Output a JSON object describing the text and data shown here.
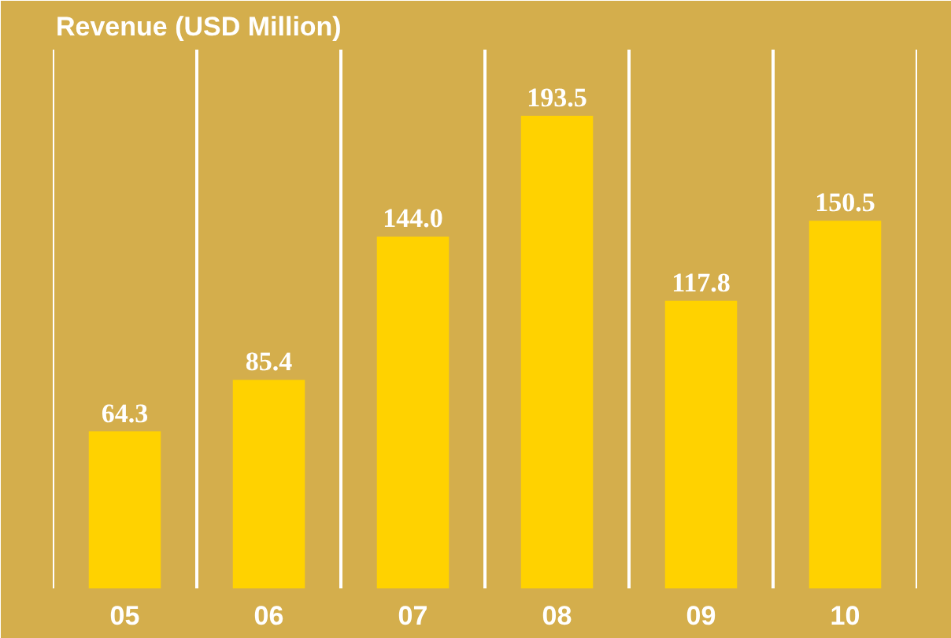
{
  "chart_data": {
    "type": "bar",
    "title": "Revenue (USD Million)",
    "categories": [
      "05",
      "06",
      "07",
      "08",
      "09",
      "10"
    ],
    "values": [
      64.3,
      85.4,
      144.0,
      193.5,
      117.8,
      150.5
    ],
    "value_labels": [
      "64.3",
      "85.4",
      "144.0",
      "193.5",
      "117.8",
      "150.5"
    ],
    "color": "#ffd200",
    "grid": "x"
  }
}
